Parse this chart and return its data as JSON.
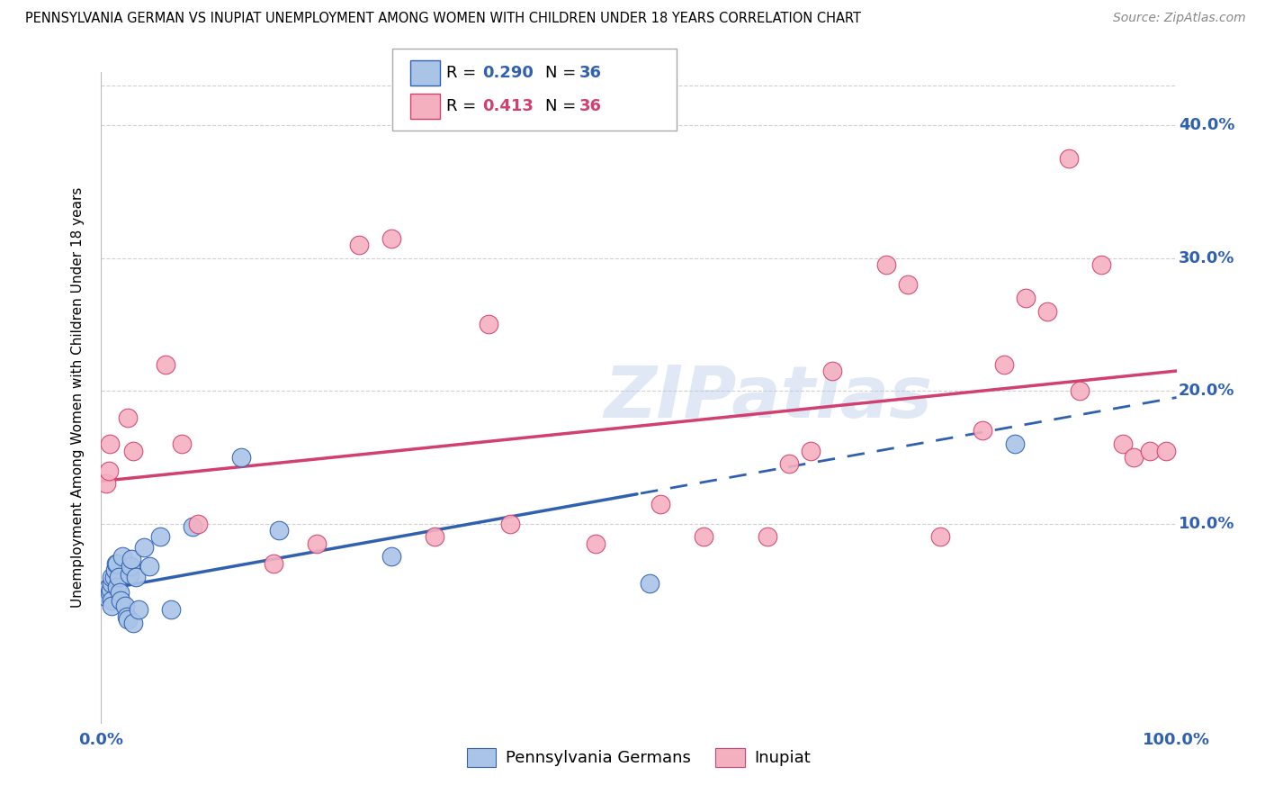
{
  "title": "PENNSYLVANIA GERMAN VS INUPIAT UNEMPLOYMENT AMONG WOMEN WITH CHILDREN UNDER 18 YEARS CORRELATION CHART",
  "source": "Source: ZipAtlas.com",
  "ylabel": "Unemployment Among Women with Children Under 18 years",
  "xlim": [
    0.0,
    1.0
  ],
  "ylim": [
    -0.05,
    0.44
  ],
  "yticks": [
    0.0,
    0.1,
    0.2,
    0.3,
    0.4
  ],
  "ytick_labels": [
    "",
    "10.0%",
    "20.0%",
    "30.0%",
    "40.0%"
  ],
  "xticks": [
    0.0,
    0.2,
    0.4,
    0.6,
    0.8,
    1.0
  ],
  "xtick_labels": [
    "0.0%",
    "",
    "",
    "",
    "",
    "100.0%"
  ],
  "grid_color": "#d0d0d0",
  "background_color": "#ffffff",
  "series1_color": "#aac4e8",
  "series2_color": "#f5b0c0",
  "line1_color": "#3060b0",
  "line2_color": "#d04070",
  "line1_solid_end": 0.5,
  "pg_x": [
    0.005,
    0.007,
    0.008,
    0.009,
    0.01,
    0.01,
    0.01,
    0.01,
    0.012,
    0.013,
    0.014,
    0.015,
    0.015,
    0.016,
    0.017,
    0.018,
    0.02,
    0.022,
    0.024,
    0.025,
    0.026,
    0.027,
    0.028,
    0.03,
    0.032,
    0.035,
    0.04,
    0.045,
    0.055,
    0.065,
    0.085,
    0.13,
    0.165,
    0.27,
    0.51,
    0.85
  ],
  "pg_y": [
    0.045,
    0.052,
    0.048,
    0.05,
    0.055,
    0.06,
    0.042,
    0.038,
    0.06,
    0.065,
    0.07,
    0.07,
    0.052,
    0.06,
    0.048,
    0.042,
    0.075,
    0.038,
    0.03,
    0.028,
    0.062,
    0.068,
    0.073,
    0.025,
    0.06,
    0.035,
    0.082,
    0.068,
    0.09,
    0.035,
    0.098,
    0.15,
    0.095,
    0.075,
    0.055,
    0.16
  ],
  "inupiat_x": [
    0.005,
    0.007,
    0.008,
    0.025,
    0.03,
    0.06,
    0.075,
    0.09,
    0.16,
    0.2,
    0.24,
    0.27,
    0.31,
    0.36,
    0.38,
    0.46,
    0.52,
    0.56,
    0.62,
    0.64,
    0.66,
    0.68,
    0.73,
    0.75,
    0.78,
    0.82,
    0.84,
    0.86,
    0.88,
    0.9,
    0.91,
    0.93,
    0.95,
    0.96,
    0.975,
    0.99
  ],
  "inupiat_y": [
    0.13,
    0.14,
    0.16,
    0.18,
    0.155,
    0.22,
    0.16,
    0.1,
    0.07,
    0.085,
    0.31,
    0.315,
    0.09,
    0.25,
    0.1,
    0.085,
    0.115,
    0.09,
    0.09,
    0.145,
    0.155,
    0.215,
    0.295,
    0.28,
    0.09,
    0.17,
    0.22,
    0.27,
    0.26,
    0.375,
    0.2,
    0.295,
    0.16,
    0.15,
    0.155,
    0.155
  ],
  "pg_line_x0": 0.0,
  "pg_line_y0": 0.05,
  "pg_line_x1": 1.0,
  "pg_line_y1": 0.195,
  "inp_line_x0": 0.0,
  "inp_line_y0": 0.132,
  "inp_line_x1": 1.0,
  "inp_line_y1": 0.215
}
